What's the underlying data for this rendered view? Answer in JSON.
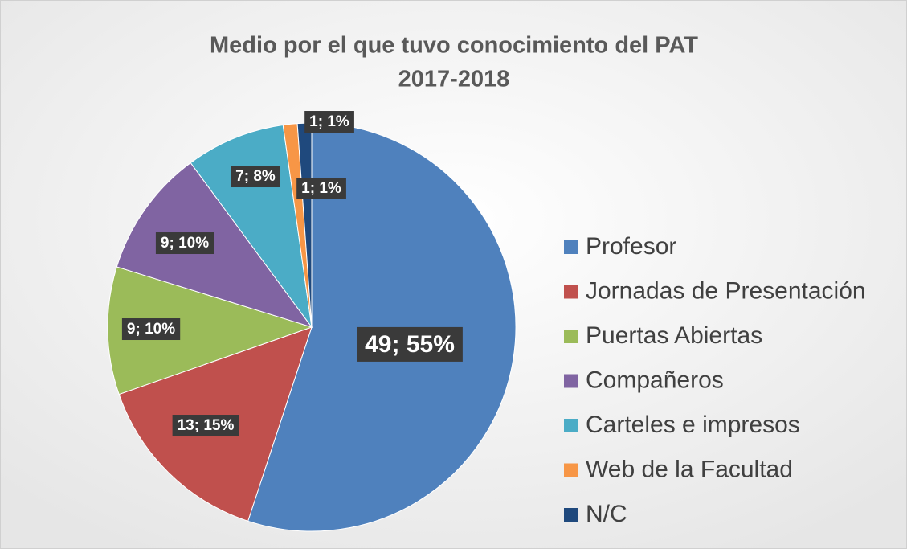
{
  "chart_data": {
    "type": "pie",
    "title": "Medio por el que tuvo conocimiento del PAT",
    "subtitle": "2017-2018",
    "categories": [
      "Profesor",
      "Jornadas de Presentación",
      "Puertas Abiertas",
      "Compañeros",
      "Carteles e impresos",
      "Web de la Facultad",
      "N/C"
    ],
    "values": [
      49,
      13,
      9,
      9,
      7,
      1,
      1
    ],
    "value_labels": [
      "49; 55%",
      "13; 15%",
      "9; 10%",
      "9; 10%",
      "7; 8%",
      "1; 1%",
      "1; 1%"
    ],
    "colors": [
      "#4f81bd",
      "#c0504d",
      "#9bbb59",
      "#8064a2",
      "#4bacc6",
      "#f79646",
      "#1f497d"
    ],
    "legend": "right"
  }
}
